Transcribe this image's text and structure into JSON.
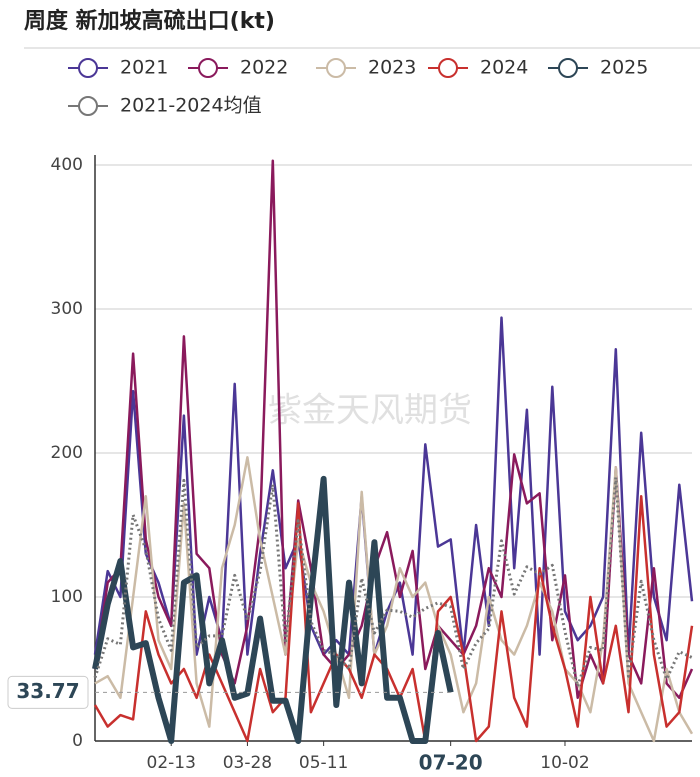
{
  "chart_data": {
    "type": "line",
    "title": "周度 新加坡高硫出口(kt)",
    "watermark": "紫金天风期货",
    "categories": [
      null,
      null,
      null,
      null,
      null,
      null,
      "02-13",
      null,
      null,
      null,
      null,
      null,
      "03-28",
      null,
      null,
      null,
      null,
      null,
      "05-11",
      null,
      null,
      null,
      null,
      null,
      null,
      null,
      null,
      null,
      "07-20",
      null,
      null,
      null,
      null,
      null,
      null,
      null,
      null,
      "10-02",
      null,
      null,
      null,
      null,
      null,
      null,
      null,
      null,
      null,
      null
    ],
    "series": [
      {
        "name": "2021",
        "color": "#4b3796",
        "values": [
          60,
          118,
          100,
          243,
          130,
          110,
          80,
          226,
          60,
          100,
          70,
          248,
          60,
          130,
          188,
          120,
          140,
          80,
          60,
          70,
          60,
          170,
          60,
          90,
          110,
          60,
          206,
          135,
          140,
          60,
          150,
          80,
          294,
          120,
          230,
          60,
          246,
          90,
          70,
          80,
          100,
          272,
          60,
          214,
          100,
          70,
          178,
          97
        ]
      },
      {
        "name": "2022",
        "color": "#8a1a5c",
        "values": [
          50,
          110,
          120,
          269,
          140,
          100,
          80,
          281,
          130,
          120,
          60,
          40,
          80,
          150,
          403,
          60,
          167,
          120,
          60,
          50,
          60,
          80,
          120,
          145,
          100,
          132,
          50,
          80,
          70,
          60,
          80,
          120,
          100,
          199,
          165,
          172,
          70,
          115,
          30,
          60,
          40,
          190,
          60,
          40,
          120,
          40,
          30,
          50
        ]
      },
      {
        "name": "2023",
        "color": "#cbbba6",
        "values": [
          40,
          45,
          30,
          100,
          170,
          70,
          50,
          165,
          40,
          10,
          120,
          150,
          197,
          140,
          100,
          60,
          140,
          110,
          90,
          60,
          30,
          173,
          60,
          80,
          120,
          100,
          110,
          80,
          60,
          20,
          40,
          100,
          70,
          60,
          80,
          110,
          90,
          50,
          40,
          20,
          70,
          190,
          40,
          20,
          0,
          50,
          20,
          5
        ]
      },
      {
        "name": "2024",
        "color": "#c8302e",
        "values": [
          25,
          10,
          18,
          15,
          90,
          60,
          40,
          50,
          30,
          60,
          40,
          20,
          0,
          50,
          20,
          30,
          165,
          20,
          40,
          60,
          50,
          30,
          60,
          50,
          30,
          50,
          0,
          90,
          100,
          60,
          0,
          10,
          90,
          30,
          10,
          120,
          80,
          50,
          10,
          100,
          40,
          80,
          20,
          170,
          60,
          10,
          20,
          80
        ]
      },
      {
        "name": "2025",
        "color": "#2d4656",
        "values": [
          50,
          95,
          125,
          65,
          68,
          30,
          0,
          110,
          115,
          40,
          70,
          30,
          33,
          85,
          28,
          28,
          0,
          100,
          182,
          25,
          110,
          40,
          138,
          30,
          30,
          0,
          0,
          75,
          33.77,
          null,
          null,
          null,
          null,
          null,
          null,
          null,
          null,
          null,
          null,
          null,
          null,
          null,
          null,
          null,
          null,
          null,
          null,
          null
        ]
      },
      {
        "name": "2021-2024均值",
        "color": "#777777",
        "values": [
          44,
          71,
          67,
          157,
          133,
          85,
          63,
          181,
          65,
          73,
          73,
          115,
          84,
          118,
          178,
          68,
          153,
          83,
          63,
          60,
          50,
          113,
          75,
          91,
          90,
          86,
          92,
          96,
          93,
          50,
          68,
          78,
          139,
          102,
          121,
          116,
          122,
          76,
          38,
          65,
          63,
          183,
          45,
          111,
          70,
          43,
          62,
          58
        ]
      }
    ],
    "ylim": [
      0,
      400
    ],
    "yticks": [
      0,
      100,
      200,
      300,
      400
    ],
    "grid": true,
    "crosshair": {
      "y": 33.77,
      "x": "07-20"
    }
  }
}
